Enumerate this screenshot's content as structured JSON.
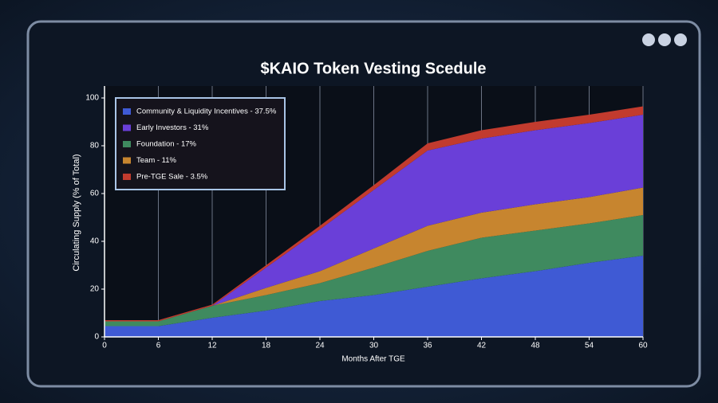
{
  "chart_data": {
    "type": "stacked_area",
    "title": "$KAIO Token Vesting Scedule",
    "x_label": "Months After TGE",
    "y_label": "Circulating Supply (% of Total)",
    "x": [
      0,
      6,
      12,
      18,
      24,
      30,
      36,
      42,
      48,
      54,
      60
    ],
    "series": [
      {
        "name": "Community & Liquidity Incentives - 37.5%",
        "color": "#3f5ad4",
        "values": [
          4.5,
          4.5,
          8,
          11,
          15,
          17.5,
          21,
          24.5,
          27.5,
          31,
          34
        ]
      },
      {
        "name": "Early Investors - 31%",
        "color": "#6a3fd8",
        "values": [
          0,
          0,
          0,
          8.5,
          17.5,
          24.5,
          31.5,
          31,
          31,
          31,
          30.5
        ]
      },
      {
        "name": "Foundation - 17%",
        "color": "#3f8a5f",
        "values": [
          2,
          2,
          5,
          6.5,
          7.5,
          11.5,
          15,
          17,
          17,
          16.5,
          17
        ]
      },
      {
        "name": "Team - 11%",
        "color": "#c7852f",
        "values": [
          0,
          0,
          0,
          3,
          5,
          8,
          10.5,
          10.5,
          11,
          11,
          11.5
        ]
      },
      {
        "name": "Pre-TGE Sale - 3.5%",
        "color": "#c23b2e",
        "values": [
          0.5,
          0.5,
          0.5,
          1,
          1.5,
          2,
          3,
          3.5,
          3.5,
          3.5,
          3.5
        ]
      }
    ],
    "stack_order": [
      0,
      2,
      3,
      1,
      4
    ],
    "xlim": [
      0,
      60
    ],
    "xticks": [
      0,
      6,
      12,
      18,
      24,
      30,
      36,
      42,
      48,
      54,
      60
    ],
    "ylim": [
      0,
      100
    ],
    "yticks": [
      0,
      20,
      40,
      60,
      80,
      100
    ],
    "grid": "x",
    "legend": "upper left"
  }
}
